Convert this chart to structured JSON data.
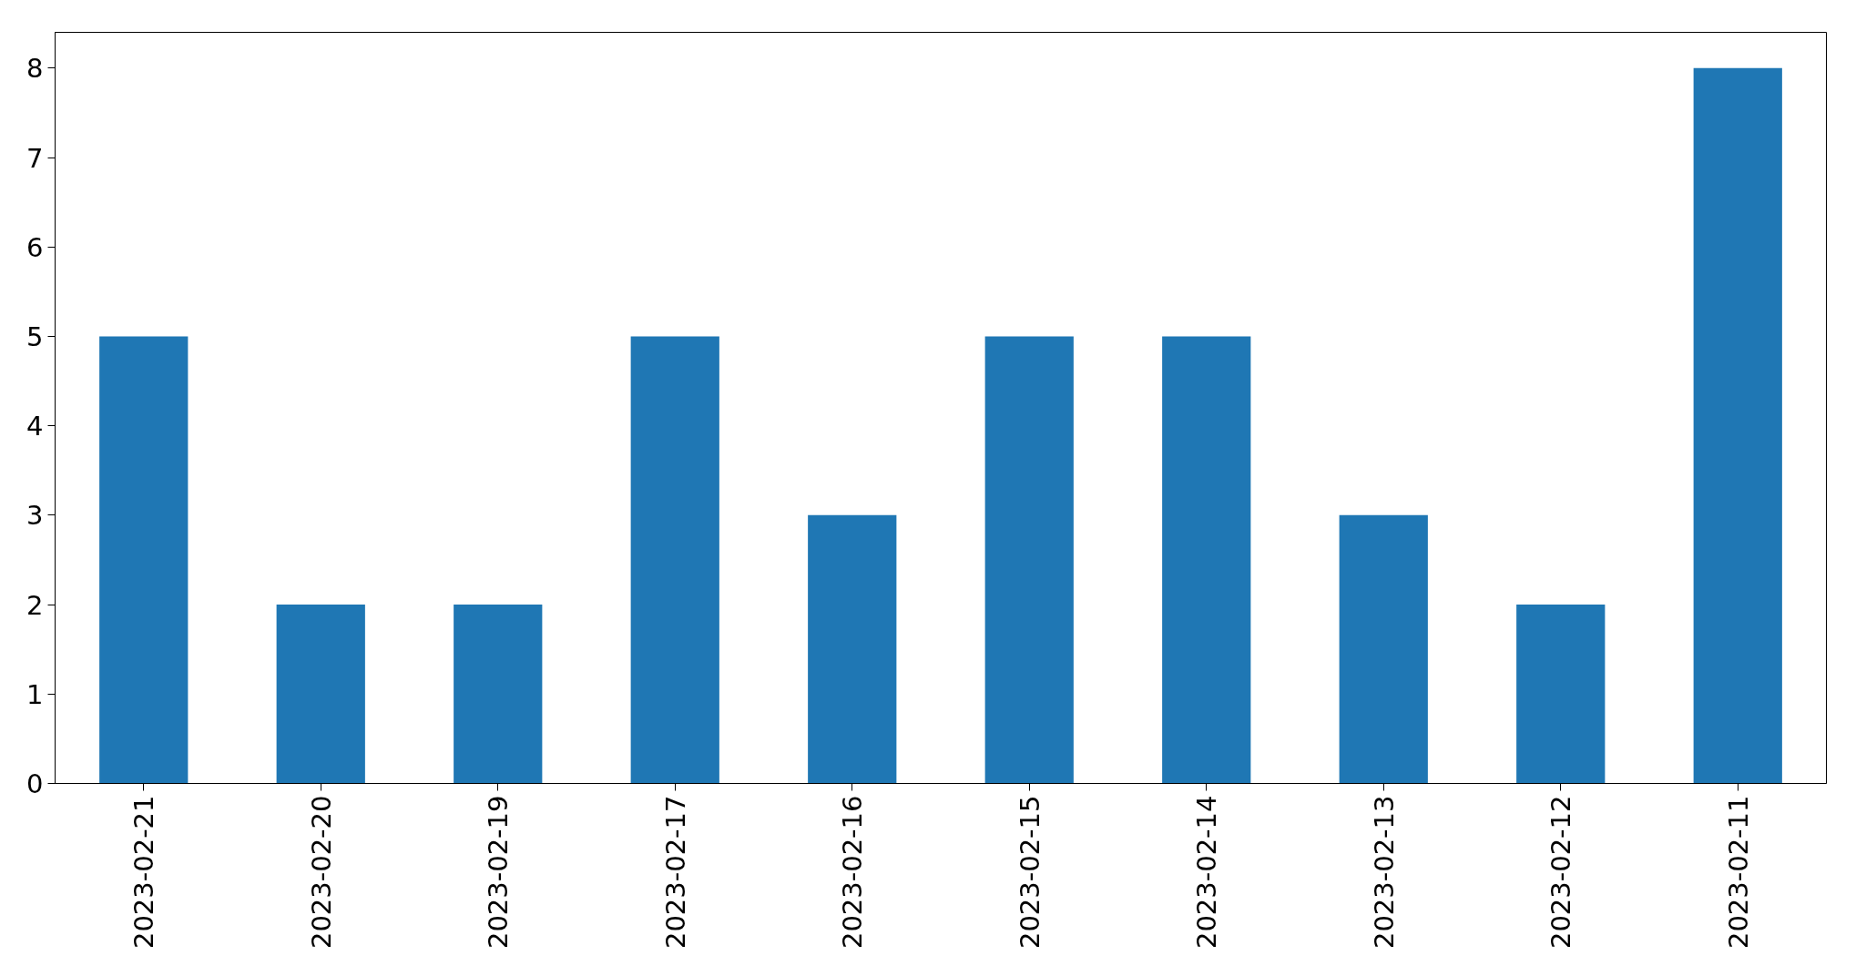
{
  "chart_data": {
    "type": "bar",
    "categories": [
      "2023-02-21",
      "2023-02-20",
      "2023-02-19",
      "2023-02-17",
      "2023-02-16",
      "2023-02-15",
      "2023-02-14",
      "2023-02-13",
      "2023-02-12",
      "2023-02-11"
    ],
    "values": [
      5,
      2,
      2,
      5,
      3,
      5,
      5,
      3,
      2,
      8
    ],
    "color": "#1f77b4",
    "ylim": [
      0,
      8.4
    ],
    "yticks": [
      0,
      1,
      2,
      3,
      4,
      5,
      6,
      7,
      8
    ],
    "grid": false
  }
}
